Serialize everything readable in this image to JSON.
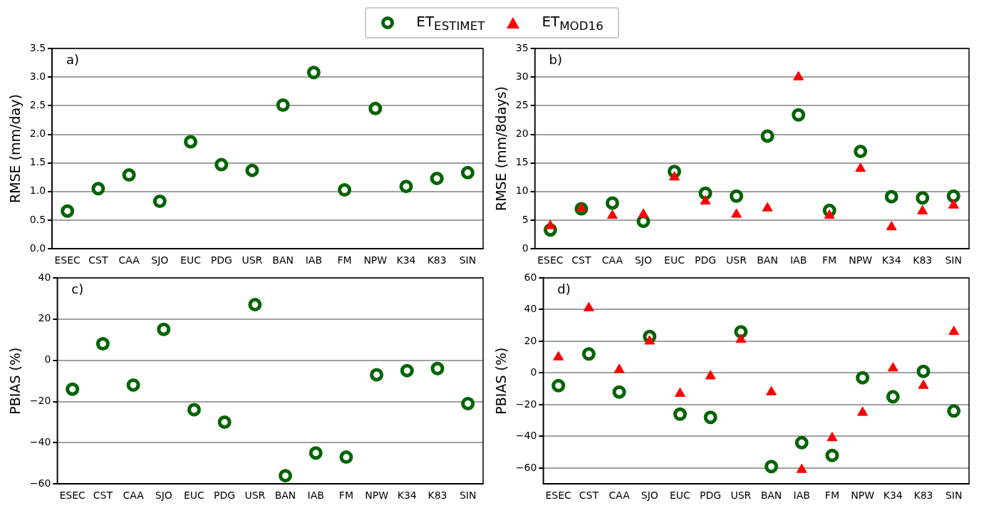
{
  "chart_data": [
    {
      "type": "scatter",
      "annotations": [
        "a)"
      ],
      "ylabel": "RMSE (mm/day)",
      "categories": [
        "ESEC",
        "CST",
        "CAA",
        "SJO",
        "EUC",
        "PDG",
        "USR",
        "BAN",
        "IAB",
        "FM",
        "NPW",
        "K34",
        "K83",
        "SIN"
      ],
      "ylim": [
        0,
        3.5
      ],
      "yticks": [
        {
          "value": 0,
          "label": "0.0"
        },
        {
          "value": 0.5,
          "label": "0.5"
        },
        {
          "value": 1,
          "label": "1.0"
        },
        {
          "value": 1.5,
          "label": "1.5"
        },
        {
          "value": 2,
          "label": "2.0"
        },
        {
          "value": 2.5,
          "label": "2.5"
        },
        {
          "value": 3,
          "label": "3.0"
        },
        {
          "value": 3.5,
          "label": "3.5"
        }
      ],
      "grid": "y",
      "series": [
        {
          "color": "#006400",
          "marker": "circle",
          "values": [
            0.66,
            1.05,
            1.29,
            0.83,
            1.87,
            1.47,
            1.37,
            2.51,
            3.08,
            1.03,
            2.45,
            1.09,
            1.23,
            1.33
          ]
        }
      ]
    },
    {
      "type": "scatter",
      "annotations": [
        "b)"
      ],
      "ylabel": "RMSE (mm/8days)",
      "categories": [
        "ESEC",
        "CST",
        "CAA",
        "SJO",
        "EUC",
        "PDG",
        "USR",
        "BAN",
        "IAB",
        "FM",
        "NPW",
        "K34",
        "K83",
        "SIN"
      ],
      "ylim": [
        0,
        35
      ],
      "yticks": [
        0,
        5,
        10,
        15,
        20,
        25,
        30,
        35
      ],
      "grid": "y",
      "legend": "top",
      "series": [
        {
          "name": "ET$_{ESTIMET}$",
          "color": "#006400",
          "marker": "circle",
          "values": [
            3.3,
            7.0,
            8.0,
            4.8,
            13.5,
            9.7,
            9.2,
            19.7,
            23.4,
            6.7,
            17.0,
            9.1,
            8.9,
            9.2
          ]
        },
        {
          "name": "ET$_{MOD16}$",
          "color": "#ff0000",
          "marker": "triangle",
          "values": [
            4.0,
            7.0,
            5.8,
            6.0,
            12.5,
            8.3,
            6.0,
            7.1,
            30.0,
            5.8,
            14.0,
            3.8,
            6.6,
            7.6
          ]
        }
      ]
    },
    {
      "type": "scatter",
      "annotations": [
        "c)"
      ],
      "ylabel": "PBIAS (%)",
      "categories": [
        "ESEC",
        "CST",
        "CAA",
        "SJO",
        "EUC",
        "PDG",
        "USR",
        "BAN",
        "IAB",
        "FM",
        "NPW",
        "K34",
        "K83",
        "SIN"
      ],
      "ylim": [
        -60,
        40
      ],
      "yticks": [
        {
          "value": -60,
          "label": "−60"
        },
        {
          "value": -40,
          "label": "−40"
        },
        {
          "value": -20,
          "label": "−20"
        },
        0,
        20,
        40
      ],
      "grid": "y",
      "series": [
        {
          "color": "#006400",
          "marker": "circle",
          "values": [
            -14,
            8,
            -12,
            15,
            -24,
            -30,
            27,
            -56,
            -45,
            -47,
            -7,
            -5,
            -4,
            -21
          ]
        }
      ]
    },
    {
      "type": "scatter",
      "annotations": [
        "d)"
      ],
      "ylabel": "PBIAS (%)",
      "categories": [
        "ESEC",
        "CST",
        "CAA",
        "SJO",
        "EUC",
        "PDG",
        "USR",
        "BAN",
        "IAB",
        "FM",
        "NPW",
        "K34",
        "K83",
        "SIN"
      ],
      "ylim": [
        -70,
        60
      ],
      "yticks": [
        {
          "value": -60,
          "label": "−60"
        },
        {
          "value": -40,
          "label": "−40"
        },
        {
          "value": -20,
          "label": "−20"
        },
        0,
        20,
        40,
        60
      ],
      "grid": "y",
      "series": [
        {
          "color": "#006400",
          "marker": "circle",
          "values": [
            -8,
            12,
            -12,
            23,
            -26,
            -28,
            26,
            -59,
            -44,
            -52,
            -3,
            -15,
            1,
            -24
          ]
        },
        {
          "color": "#ff0000",
          "marker": "triangle",
          "values": [
            10,
            41,
            2,
            20,
            -13,
            -2,
            21,
            -12,
            -61,
            -41,
            -25,
            3,
            -8,
            26
          ]
        }
      ]
    }
  ]
}
